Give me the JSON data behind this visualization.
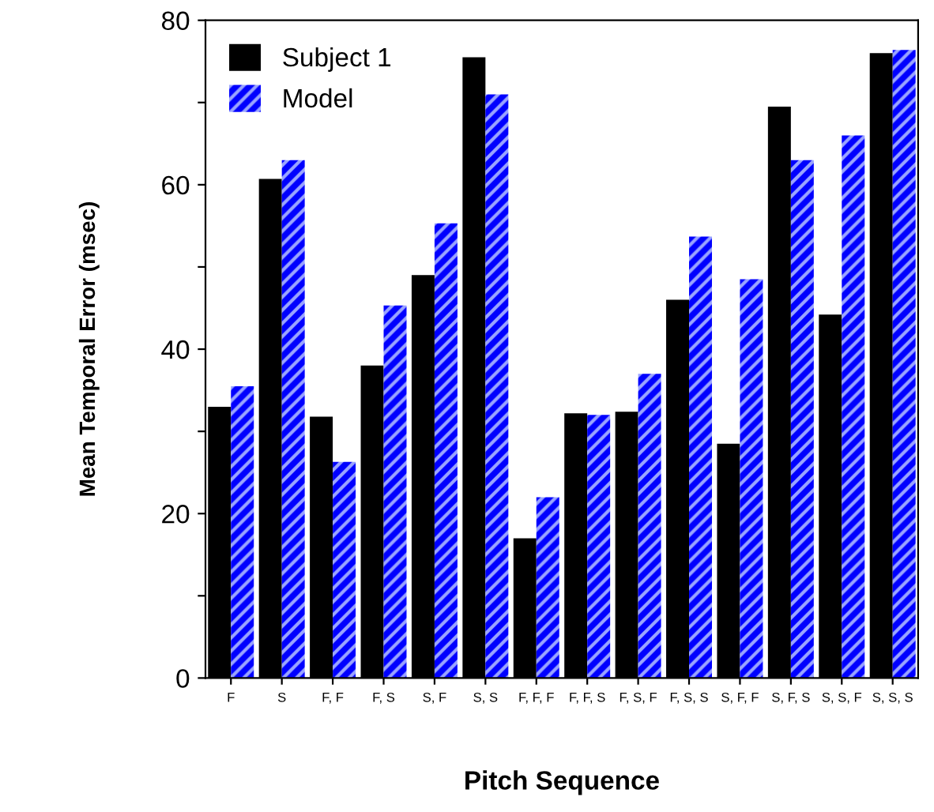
{
  "chart_data": {
    "type": "bar",
    "xlabel": "Pitch Sequence",
    "ylabel": "Mean Temporal Error (msec)",
    "categories": [
      "F",
      "S",
      "F, F",
      "F, S",
      "S, F",
      "S, S",
      "F, F, F",
      "F, F, S",
      "F, S, F",
      "F, S, S",
      "S, F, F",
      "S, F, S",
      "S, S, F",
      "S, S, S"
    ],
    "series": [
      {
        "name": "Subject 1",
        "color": "#000000",
        "values": [
          33,
          60.7,
          31.8,
          38,
          49,
          75.5,
          17,
          32.2,
          32.4,
          46,
          28.5,
          69.5,
          44.2,
          76
        ]
      },
      {
        "name": "Model",
        "color": "#0000ff",
        "values": [
          35.5,
          63,
          26.3,
          45.3,
          55.3,
          71,
          22,
          32,
          37,
          53.7,
          48.5,
          63,
          66,
          76.4
        ]
      }
    ],
    "ylim": [
      0,
      80
    ],
    "yticks": [
      0,
      {
        "value": 10,
        "label": null
      },
      20,
      {
        "value": 30,
        "label": null
      },
      40,
      {
        "value": 50,
        "label": null
      },
      60,
      {
        "value": 70,
        "label": null
      },
      80
    ],
    "grid": false,
    "legend": "top left"
  }
}
